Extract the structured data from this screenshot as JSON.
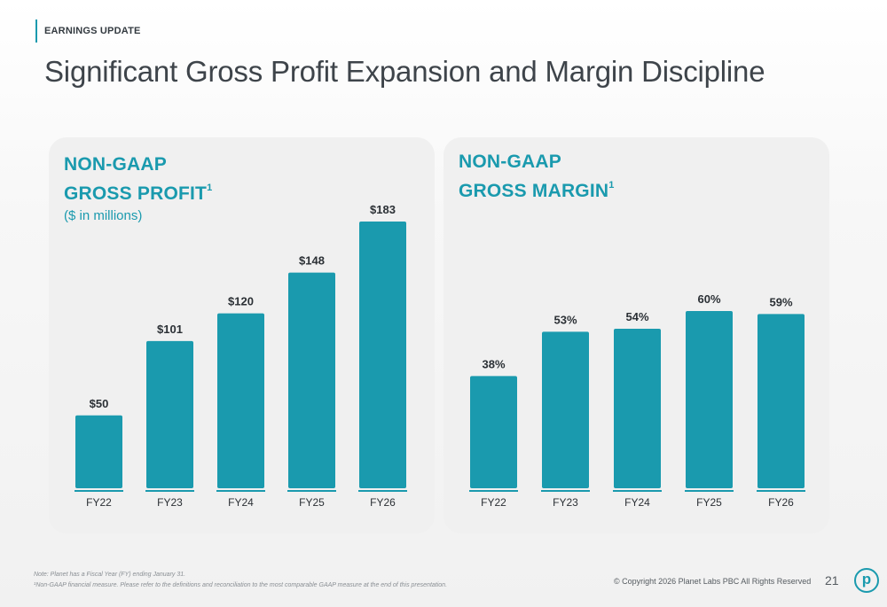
{
  "header": {
    "section_tag": "EARNINGS UPDATE",
    "title": "Significant Gross Profit Expansion and Margin Discipline"
  },
  "colors": {
    "accent": "#1a9aae",
    "panel_bg": "#f0f0f0",
    "text": "#3e444a"
  },
  "chart_data": [
    {
      "type": "bar",
      "title_line1": "NON-GAAP",
      "title_line2": "GROSS PROFIT",
      "title_sup": "1",
      "subtitle": "($ in millions)",
      "categories": [
        "FY22",
        "FY23",
        "FY24",
        "FY25",
        "FY26"
      ],
      "values": [
        50,
        101,
        120,
        148,
        183
      ],
      "data_labels": [
        "$50",
        "$101",
        "$120",
        "$148",
        "$183"
      ],
      "ylim": [
        0,
        183
      ],
      "color": "#1a9aae",
      "grid": false,
      "legend": "none"
    },
    {
      "type": "bar",
      "title_line1": "NON-GAAP",
      "title_line2": "GROSS MARGIN",
      "title_sup": "1",
      "categories": [
        "FY22",
        "FY23",
        "FY24",
        "FY25",
        "FY26"
      ],
      "values": [
        38,
        53,
        54,
        60,
        59
      ],
      "data_labels": [
        "38%",
        "53%",
        "54%",
        "60%",
        "59%"
      ],
      "ylim": [
        0,
        60
      ],
      "color": "#1a9aae",
      "grid": false,
      "legend": "none"
    }
  ],
  "footer": {
    "note1": "Note: Planet has a Fiscal Year (FY) ending January 31.",
    "note2": "¹Non-GAAP financial measure. Please refer to the definitions and reconciliation to the most comparable GAAP measure at the end of this presentation.",
    "copyright": "© Copyright 2026 Planet Labs PBC  All Rights Reserved",
    "page_number": "21",
    "logo_letter": "p"
  }
}
